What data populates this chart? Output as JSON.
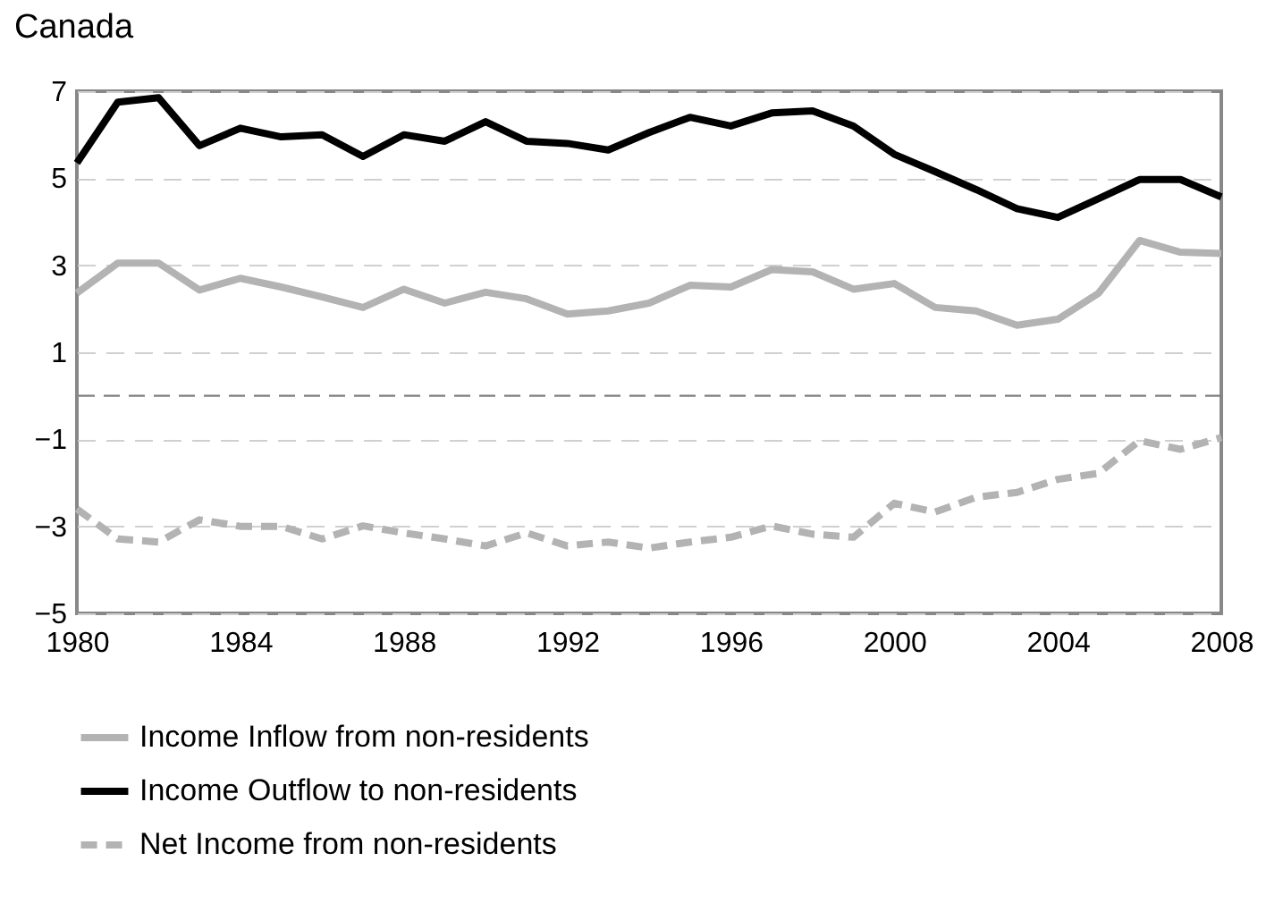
{
  "chart_data": {
    "type": "line",
    "title": "Canada",
    "x": [
      1980,
      1981,
      1982,
      1983,
      1984,
      1985,
      1986,
      1987,
      1988,
      1989,
      1990,
      1991,
      1992,
      1993,
      1994,
      1995,
      1996,
      1997,
      1998,
      1999,
      2000,
      2001,
      2002,
      2003,
      2004,
      2005,
      2006,
      2007,
      2008
    ],
    "series": [
      {
        "name": "Income Inflow from non-residents",
        "color": "#b3b3b3",
        "line_style": "solid",
        "values": [
          2.36,
          3.05,
          3.05,
          2.43,
          2.7,
          2.5,
          2.27,
          2.03,
          2.45,
          2.13,
          2.38,
          2.23,
          1.88,
          1.95,
          2.13,
          2.54,
          2.5,
          2.9,
          2.85,
          2.45,
          2.58,
          2.03,
          1.95,
          1.62,
          1.76,
          2.36,
          3.57,
          3.3,
          3.27
        ]
      },
      {
        "name": "Income Outflow to non-residents",
        "color": "#000000",
        "line_style": "solid",
        "values": [
          5.35,
          6.75,
          6.85,
          5.75,
          6.15,
          5.95,
          6.0,
          5.5,
          6.0,
          5.85,
          6.3,
          5.85,
          5.8,
          5.65,
          6.05,
          6.4,
          6.2,
          6.5,
          6.55,
          6.2,
          5.55,
          5.15,
          4.74,
          4.3,
          4.1,
          4.53,
          4.97,
          4.97,
          4.57
        ]
      },
      {
        "name": "Net Income from non-residents",
        "color": "#b3b3b3",
        "line_style": "dashed",
        "values": [
          -2.6,
          -3.29,
          -3.36,
          -2.85,
          -3.0,
          -3.0,
          -3.29,
          -2.99,
          -3.15,
          -3.29,
          -3.45,
          -3.15,
          -3.45,
          -3.36,
          -3.5,
          -3.36,
          -3.25,
          -2.99,
          -3.18,
          -3.25,
          -2.47,
          -2.67,
          -2.33,
          -2.22,
          -1.92,
          -1.78,
          -1.03,
          -1.23,
          -0.96
        ]
      }
    ],
    "xlim": [
      1980,
      2008
    ],
    "xticks": [
      1980,
      1984,
      1988,
      1992,
      1996,
      2000,
      2004,
      2008
    ],
    "ylim": [
      -5,
      7
    ],
    "yticks": [
      -5,
      -3,
      -1,
      1,
      3,
      5,
      7
    ],
    "grid": "y",
    "legend": "bottom",
    "ref_lines": [
      {
        "axis": "y",
        "value": 0,
        "color": "#808080",
        "line_style": "dashed"
      }
    ]
  }
}
